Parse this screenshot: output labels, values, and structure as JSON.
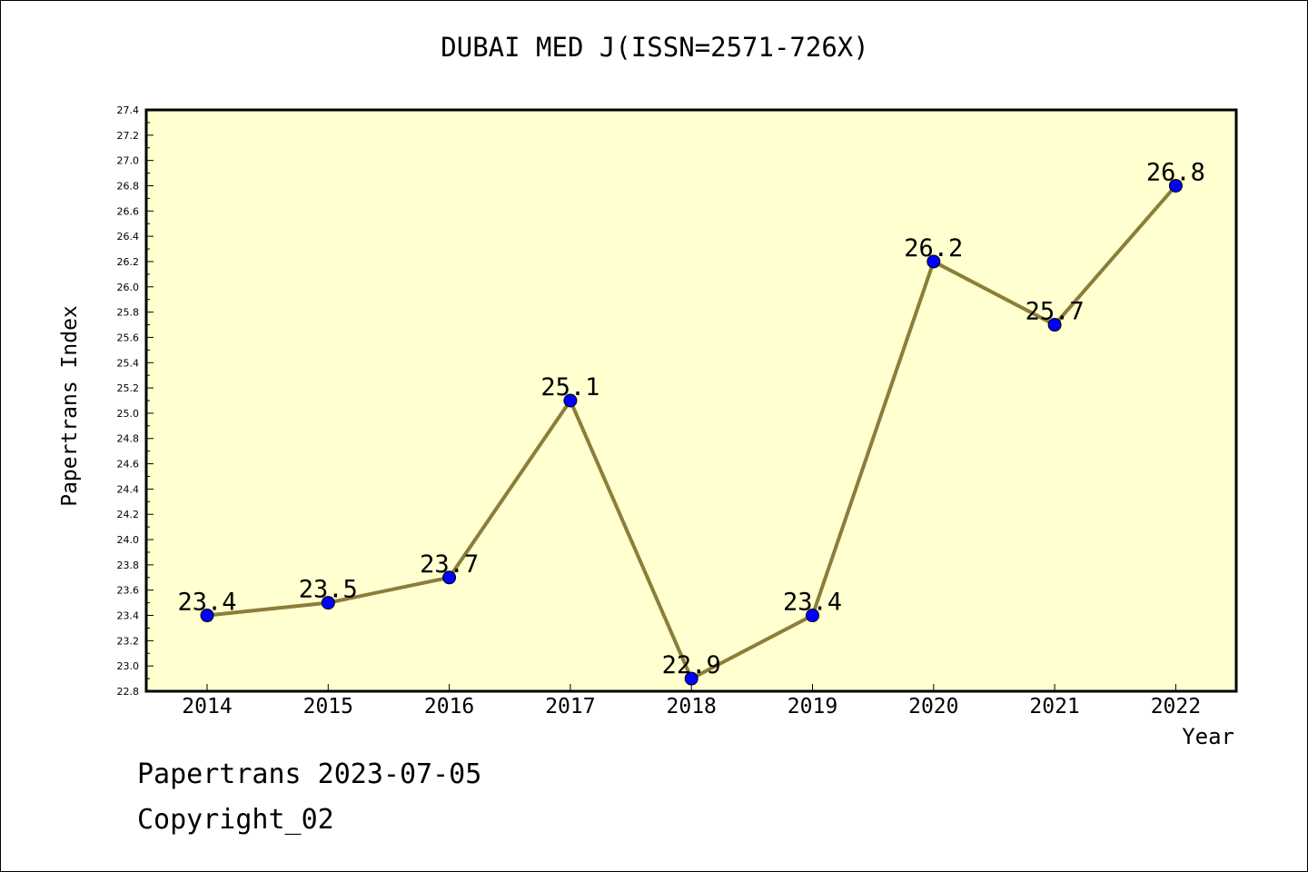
{
  "chart_data": {
    "type": "line",
    "title": "DUBAI MED J(ISSN=2571-726X)",
    "xlabel": "Year",
    "ylabel": "Papertrans Index",
    "categories": [
      "2014",
      "2015",
      "2016",
      "2017",
      "2018",
      "2019",
      "2020",
      "2021",
      "2022"
    ],
    "series": [
      {
        "values": [
          23.4,
          23.5,
          23.7,
          25.1,
          22.9,
          23.4,
          26.2,
          25.7,
          26.8
        ],
        "data_labels": [
          "23.4",
          "23.5",
          "23.7",
          "25.1",
          "22.9",
          "23.4",
          "26.2",
          "25.7",
          "26.8"
        ],
        "line_color": "#8b7d3a",
        "marker_color": "#0000ff"
      }
    ],
    "ylim": [
      22.8,
      27.4
    ],
    "yticks": [
      "22.8",
      "23.0",
      "23.2",
      "23.4",
      "23.6",
      "23.8",
      "24.0",
      "24.2",
      "24.4",
      "24.6",
      "24.8",
      "25.0",
      "25.2",
      "25.4",
      "25.6",
      "25.8",
      "26.0",
      "26.2",
      "26.4",
      "26.6",
      "26.8",
      "27.0",
      "27.2",
      "27.4"
    ],
    "plot_background": "#ffffd0",
    "grid": false,
    "legend": "none"
  },
  "footer": {
    "line1": "Papertrans 2023-07-05",
    "line2": "Copyright_02"
  }
}
